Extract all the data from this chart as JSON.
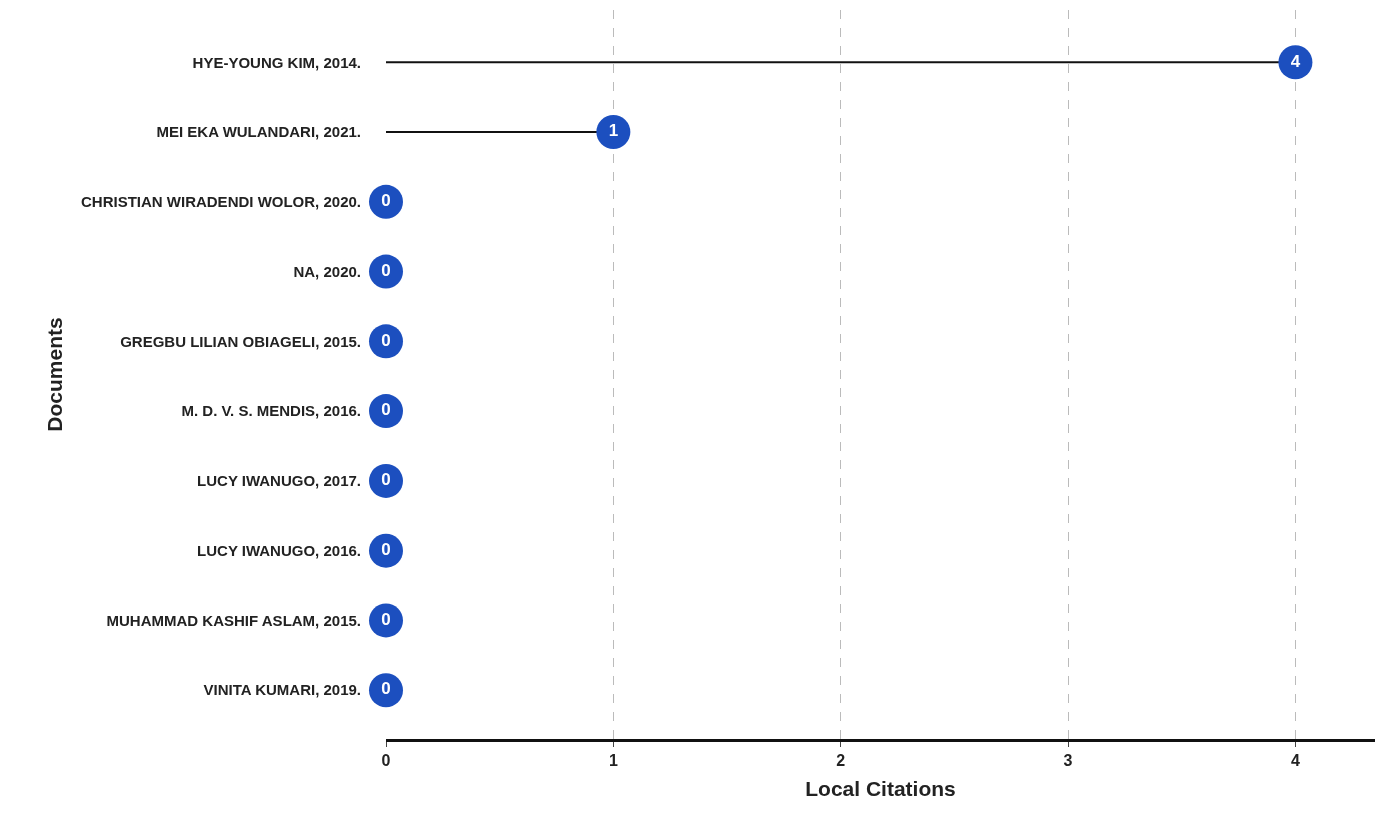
{
  "chart_data": {
    "type": "lollipop",
    "orientation": "horizontal",
    "xlabel": "Local Citations",
    "ylabel": "Documents",
    "categories": [
      "HYE-YOUNG KIM, 2014.",
      "MEI EKA WULANDARI, 2021.",
      "CHRISTIAN WIRADENDI WOLOR, 2020.",
      "NA, 2020.",
      "GREGBU LILIAN OBIAGELI, 2015.",
      "M. D. V. S. MENDIS, 2016.",
      "LUCY IWANUGO, 2017.",
      "LUCY IWANUGO, 2016.",
      "MUHAMMAD KASHIF ASLAM, 2015.",
      "VINITA KUMARI, 2019."
    ],
    "values": [
      4,
      1,
      0,
      0,
      0,
      0,
      0,
      0,
      0,
      0
    ],
    "color": "#1c4fbf",
    "data_labels": true,
    "marker": "circle",
    "grid": "x",
    "xlim": [
      0,
      4.35
    ],
    "xticks": [
      0,
      1,
      2,
      3,
      4
    ]
  }
}
